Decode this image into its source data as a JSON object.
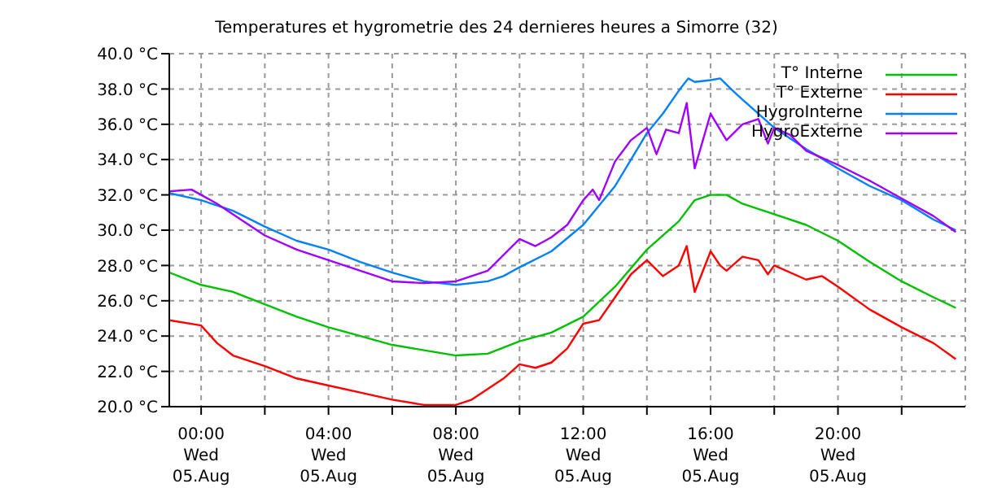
{
  "chart_data": {
    "type": "line",
    "title": "Temperatures et hygrometrie des 24 dernieres heures a Simorre (32)",
    "xlim": [
      "--08-04T23:00",
      "--08-06T00:00"
    ],
    "xticks": [
      {
        "value": "--08-05T00:00",
        "label": "00:00\nWed\n05.Aug"
      },
      {
        "value": "--08-05T02:00",
        "label": null
      },
      {
        "value": "--08-05T04:00",
        "label": "04:00\nWed\n05.Aug"
      },
      {
        "value": "--08-05T06:00",
        "label": null
      },
      {
        "value": "--08-05T08:00",
        "label": "08:00\nWed\n05.Aug"
      },
      {
        "value": "--08-05T10:00",
        "label": null
      },
      {
        "value": "--08-05T12:00",
        "label": "12:00\nWed\n05.Aug"
      },
      {
        "value": "--08-05T14:00",
        "label": null
      },
      {
        "value": "--08-05T16:00",
        "label": "16:00\nWed\n05.Aug"
      },
      {
        "value": "--08-05T18:00",
        "label": null
      },
      {
        "value": "--08-05T20:00",
        "label": "20:00\nWed\n05.Aug"
      },
      {
        "value": "--08-05T22:00",
        "label": null
      }
    ],
    "ylim": [
      20,
      40
    ],
    "yticks": [
      {
        "value": 20,
        "label": "20.0 °C"
      },
      {
        "value": 22,
        "label": "22.0 °C"
      },
      {
        "value": 24,
        "label": "24.0 °C"
      },
      {
        "value": 26,
        "label": "26.0 °C"
      },
      {
        "value": 28,
        "label": "28.0 °C"
      },
      {
        "value": 30,
        "label": "30.0 °C"
      },
      {
        "value": 32,
        "label": "32.0 °C"
      },
      {
        "value": 34,
        "label": "34.0 °C"
      },
      {
        "value": 36,
        "label": "36.0 °C"
      },
      {
        "value": 38,
        "label": "38.0 °C"
      },
      {
        "value": 40,
        "label": "40.0 °C"
      }
    ],
    "grid": true,
    "legend": "top right",
    "marker": "none",
    "line_style": "solid",
    "series": [
      {
        "name": "T° Interne",
        "color": "#00c000",
        "x": [
          "--08-04T23:00",
          "--08-05T00:00",
          "--08-05T01:00",
          "--08-05T02:00",
          "--08-05T03:00",
          "--08-05T04:00",
          "--08-05T05:00",
          "--08-05T06:00",
          "--08-05T07:00",
          "--08-05T08:00",
          "--08-05T09:00",
          "--08-05T10:00",
          "--08-05T11:00",
          "--08-05T12:00",
          "--08-05T13:00",
          "--08-05T14:00",
          "--08-05T15:00",
          "--08-05T15:30",
          "--08-05T16:00",
          "--08-05T16:30",
          "--08-05T17:00",
          "--08-05T18:00",
          "--08-05T19:00",
          "--08-05T20:00",
          "--08-05T21:00",
          "--08-05T22:00",
          "--08-05T23:00",
          "--08-05T23:42"
        ],
        "values": [
          27.6,
          26.9,
          26.5,
          25.8,
          25.1,
          24.5,
          24,
          23.5,
          23.2,
          22.9,
          23,
          23.7,
          24.2,
          25.1,
          26.8,
          28.9,
          30.5,
          31.7,
          32,
          32,
          31.5,
          30.9,
          30.3,
          29.4,
          28.2,
          27.1,
          26.2,
          25.6
        ]
      },
      {
        "name": "T° Externe",
        "color": "#ff0000",
        "x": [
          "--08-04T23:00",
          "--08-05T00:00",
          "--08-05T00:30",
          "--08-05T01:00",
          "--08-05T02:00",
          "--08-05T03:00",
          "--08-05T04:00",
          "--08-05T05:00",
          "--08-05T06:00",
          "--08-05T07:00",
          "--08-05T08:00",
          "--08-05T08:30",
          "--08-05T09:00",
          "--08-05T09:30",
          "--08-05T10:00",
          "--08-05T10:30",
          "--08-05T11:00",
          "--08-05T11:30",
          "--08-05T12:00",
          "--08-05T12:30",
          "--08-05T13:00",
          "--08-05T13:30",
          "--08-05T14:00",
          "--08-05T14:30",
          "--08-05T15:00",
          "--08-05T15:15",
          "--08-05T15:30",
          "--08-05T16:00",
          "--08-05T16:18",
          "--08-05T16:30",
          "--08-05T17:00",
          "--08-05T17:30",
          "--08-05T17:48",
          "--08-05T18:00",
          "--08-05T19:00",
          "--08-05T19:30",
          "--08-05T20:00",
          "--08-05T21:00",
          "--08-05T22:00",
          "--08-05T23:00",
          "--08-05T23:42"
        ],
        "values": [
          24.9,
          24.6,
          23.6,
          22.9,
          22.3,
          21.6,
          21.2,
          20.8,
          20.4,
          20.1,
          20.1,
          20.4,
          21,
          21.6,
          22.4,
          22.2,
          22.5,
          23.3,
          24.7,
          24.9,
          26.2,
          27.5,
          28.3,
          27.4,
          28,
          29.1,
          26.5,
          28.8,
          28,
          27.7,
          28.5,
          28.3,
          27.5,
          28,
          27.2,
          27.4,
          26.8,
          25.5,
          24.5,
          23.6,
          22.7
        ]
      },
      {
        "name": "HygroInterne",
        "color": "#0080ff",
        "x": [
          "--08-04T23:00",
          "--08-05T00:00",
          "--08-05T00:30",
          "--08-05T01:00",
          "--08-05T02:00",
          "--08-05T03:00",
          "--08-05T04:00",
          "--08-05T05:00",
          "--08-05T06:00",
          "--08-05T07:00",
          "--08-05T08:00",
          "--08-05T09:00",
          "--08-05T09:30",
          "--08-05T10:00",
          "--08-05T11:00",
          "--08-05T12:00",
          "--08-05T13:00",
          "--08-05T14:00",
          "--08-05T14:30",
          "--08-05T15:00",
          "--08-05T15:18",
          "--08-05T15:30",
          "--08-05T16:00",
          "--08-05T16:18",
          "--08-05T16:42",
          "--08-05T17:00",
          "--08-05T18:00",
          "--08-05T19:00",
          "--08-05T20:00",
          "--08-05T21:00",
          "--08-05T22:00",
          "--08-05T23:00",
          "--08-05T23:42"
        ],
        "values": [
          32.1,
          31.7,
          31.4,
          31.1,
          30.2,
          29.4,
          28.9,
          28.2,
          27.6,
          27.1,
          26.9,
          27.1,
          27.4,
          27.9,
          28.8,
          30.3,
          32.5,
          35.5,
          36.6,
          37.9,
          38.6,
          38.4,
          38.5,
          38.6,
          37.9,
          37.4,
          35.8,
          34.6,
          33.5,
          32.5,
          31.7,
          30.6,
          30
        ]
      },
      {
        "name": "HygroExterne",
        "color": "#a000ff",
        "x": [
          "--08-04T23:00",
          "--08-04T23:42",
          "--08-05T00:00",
          "--08-05T00:30",
          "--08-05T01:00",
          "--08-05T02:00",
          "--08-05T03:00",
          "--08-05T04:00",
          "--08-05T05:00",
          "--08-05T06:00",
          "--08-05T07:00",
          "--08-05T08:00",
          "--08-05T08:30",
          "--08-05T09:00",
          "--08-05T09:30",
          "--08-05T10:00",
          "--08-05T10:30",
          "--08-05T11:00",
          "--08-05T11:30",
          "--08-05T12:00",
          "--08-05T12:18",
          "--08-05T12:30",
          "--08-05T13:00",
          "--08-05T13:30",
          "--08-05T14:00",
          "--08-05T14:18",
          "--08-05T14:36",
          "--08-05T15:00",
          "--08-05T15:15",
          "--08-05T15:30",
          "--08-05T16:00",
          "--08-05T16:18",
          "--08-05T16:30",
          "--08-05T17:00",
          "--08-05T17:30",
          "--08-05T17:48",
          "--08-05T18:00",
          "--08-05T18:30",
          "--08-05T19:00",
          "--08-05T20:00",
          "--08-05T21:00",
          "--08-05T22:00",
          "--08-05T23:00",
          "--08-05T23:42"
        ],
        "values": [
          32.2,
          32.3,
          32,
          31.5,
          30.9,
          29.7,
          28.9,
          28.3,
          27.7,
          27.1,
          27,
          27.1,
          27.4,
          27.7,
          28.6,
          29.5,
          29.1,
          29.6,
          30.3,
          31.7,
          32.3,
          31.7,
          33.9,
          35.1,
          35.8,
          34.3,
          35.7,
          35.5,
          37.2,
          33.5,
          36.6,
          35.7,
          35.1,
          36,
          36.3,
          34.9,
          35.8,
          35.4,
          34.5,
          33.7,
          32.8,
          31.8,
          30.8,
          29.9
        ]
      }
    ]
  }
}
